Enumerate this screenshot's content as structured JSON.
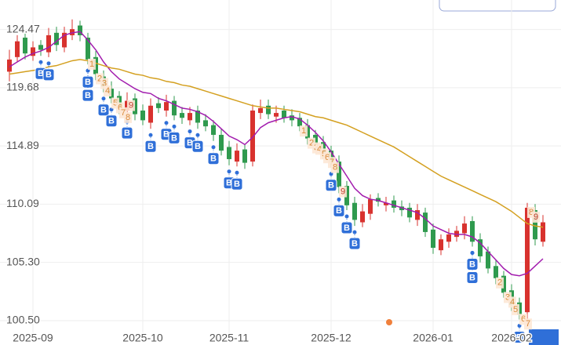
{
  "chart_data": {
    "type": "candlestick",
    "categories": [
      null,
      null,
      null,
      "2025-09",
      null,
      null,
      null,
      null,
      null,
      null,
      null,
      null,
      null,
      null,
      null,
      null,
      null,
      "2025-10",
      null,
      null,
      null,
      null,
      null,
      null,
      null,
      null,
      null,
      null,
      "2025-11",
      null,
      null,
      null,
      null,
      null,
      null,
      null,
      null,
      null,
      null,
      null,
      null,
      "2025-12",
      null,
      null,
      null,
      null,
      null,
      null,
      null,
      null,
      null,
      null,
      null,
      null,
      "2026-01",
      null,
      null,
      null,
      null,
      null,
      null,
      null,
      null,
      null,
      "2026-02",
      null,
      null,
      null,
      null
    ],
    "open": [
      121.0,
      122.2,
      123.8,
      122.3,
      123.2,
      122.6,
      124.2,
      123.0,
      124.0,
      124.8,
      123.8,
      122.2,
      120.6,
      119.6,
      119.0,
      117.8,
      118.8,
      117.8,
      116.8,
      118.4,
      117.8,
      118.6,
      117.6,
      117.0,
      117.8,
      117.0,
      116.6,
      115.8,
      114.8,
      113.6,
      114.6,
      113.6,
      117.6,
      118.2,
      117.3,
      117.8,
      117.4,
      117.2,
      116.6,
      115.8,
      115.2,
      114.5,
      113.6,
      111.6,
      110.2,
      108.6,
      109.3,
      110.6,
      110.0,
      110.4,
      109.9,
      109.8,
      108.8,
      109.4,
      108.0,
      106.3,
      107.0,
      107.4,
      107.7,
      108.7,
      107.2,
      106.2,
      105.0,
      104.2,
      103.0,
      102.0,
      101.2,
      109.6,
      107.0
    ],
    "high": [
      122.8,
      124.0,
      124.4,
      123.5,
      123.6,
      124.6,
      124.7,
      124.7,
      125.3,
      125.2,
      124.2,
      122.7,
      121.1,
      120.2,
      119.4,
      119.3,
      119.2,
      118.3,
      118.8,
      118.9,
      119.1,
      119.0,
      118.1,
      118.1,
      118.2,
      117.5,
      117.0,
      116.3,
      115.3,
      115.1,
      115.0,
      118.3,
      118.7,
      118.7,
      118.2,
      118.2,
      117.9,
      117.6,
      117.1,
      116.2,
      115.7,
      114.9,
      114.1,
      112.0,
      110.7,
      110.1,
      110.9,
      111.0,
      110.7,
      110.8,
      110.4,
      110.2,
      110.1,
      109.8,
      108.5,
      107.6,
      108.1,
      108.3,
      109.1,
      109.1,
      107.7,
      106.6,
      105.5,
      104.6,
      103.5,
      102.4,
      110.2,
      110.1,
      109.2
    ],
    "low": [
      120.2,
      121.8,
      122.0,
      121.9,
      122.3,
      122.2,
      122.7,
      122.6,
      123.6,
      123.5,
      121.6,
      120.3,
      119.3,
      118.4,
      117.5,
      117.4,
      117.0,
      116.6,
      116.3,
      117.6,
      117.3,
      117.0,
      116.7,
      116.6,
      116.3,
      116.1,
      115.3,
      114.1,
      113.3,
      113.2,
      113.0,
      113.2,
      117.1,
      117.1,
      116.8,
      116.8,
      116.5,
      116.1,
      115.0,
      114.6,
      113.8,
      113.1,
      111.0,
      109.6,
      108.3,
      108.2,
      108.8,
      109.9,
      109.5,
      109.4,
      109.1,
      108.6,
      108.3,
      107.4,
      106.0,
      105.9,
      106.5,
      107.0,
      107.2,
      106.6,
      105.3,
      104.4,
      103.5,
      102.4,
      101.3,
      100.6,
      100.0,
      106.7,
      106.6
    ],
    "close": [
      122.0,
      123.5,
      122.5,
      123.0,
      122.8,
      124.0,
      123.2,
      124.2,
      124.5,
      124.0,
      122.0,
      120.8,
      119.8,
      118.8,
      118.0,
      118.6,
      117.5,
      117.0,
      118.2,
      118.0,
      118.5,
      117.4,
      117.2,
      117.6,
      116.8,
      116.5,
      115.8,
      114.5,
      113.8,
      114.5,
      113.5,
      117.8,
      118.0,
      117.5,
      117.6,
      117.2,
      117.0,
      116.5,
      115.5,
      115.0,
      114.3,
      113.5,
      111.5,
      110.0,
      108.8,
      109.5,
      110.5,
      110.3,
      110.2,
      109.8,
      109.6,
      109.0,
      109.6,
      107.8,
      106.5,
      107.2,
      107.6,
      107.9,
      108.5,
      107.0,
      105.8,
      104.8,
      104.0,
      102.8,
      101.8,
      101.0,
      109.8,
      107.2,
      108.6
    ],
    "up_color": "#d8322e",
    "down_color": "#2f9a4e",
    "ma_lines": [
      {
        "color": "#a21cae",
        "values": [
          121.4,
          121.8,
          122.2,
          122.5,
          122.7,
          123.0,
          123.5,
          124.0,
          124.2,
          124.3,
          123.6,
          122.8,
          121.8,
          121.0,
          120.4,
          120.0,
          119.6,
          119.3,
          119.2,
          118.8,
          118.6,
          118.3,
          118.0,
          117.9,
          117.7,
          117.4,
          116.9,
          116.3,
          115.7,
          115.4,
          115.0,
          115.6,
          116.4,
          116.8,
          117.0,
          117.2,
          117.3,
          117.1,
          116.6,
          116.0,
          115.3,
          114.4,
          113.4,
          112.4,
          111.4,
          110.8,
          110.5,
          110.4,
          110.2,
          110.0,
          109.8,
          109.6,
          109.4,
          108.9,
          108.3,
          108.0,
          107.7,
          107.6,
          107.6,
          107.4,
          106.9,
          106.2,
          105.5,
          104.8,
          104.3,
          104.2,
          104.4,
          105.0,
          105.6
        ]
      },
      {
        "color": "#d4a020",
        "values": [
          120.8,
          120.9,
          121.0,
          121.1,
          121.2,
          121.4,
          121.5,
          121.7,
          121.9,
          122.0,
          121.9,
          121.7,
          121.5,
          121.3,
          121.2,
          121.0,
          120.8,
          120.7,
          120.5,
          120.4,
          120.2,
          120.1,
          119.9,
          119.8,
          119.6,
          119.4,
          119.2,
          119.0,
          118.8,
          118.6,
          118.4,
          118.2,
          118.1,
          118.0,
          118.0,
          117.9,
          117.8,
          117.7,
          117.5,
          117.3,
          117.2,
          117.0,
          116.8,
          116.6,
          116.3,
          116.0,
          115.7,
          115.4,
          115.1,
          114.8,
          114.4,
          114.0,
          113.6,
          113.2,
          112.8,
          112.4,
          112.1,
          111.8,
          111.5,
          111.2,
          110.9,
          110.6,
          110.3,
          109.9,
          109.5,
          109.0,
          108.5,
          108.3,
          108.2
        ]
      }
    ],
    "signals": [
      {
        "index": 4,
        "label": "B"
      },
      {
        "index": 5,
        "label": "B"
      },
      {
        "index": 10,
        "label": "B"
      },
      {
        "index": 10,
        "label": "B"
      },
      {
        "index": 12,
        "label": "B"
      },
      {
        "index": 13,
        "label": "B"
      },
      {
        "index": 15,
        "label": "B"
      },
      {
        "index": 18,
        "label": "B"
      },
      {
        "index": 20,
        "label": "B"
      },
      {
        "index": 21,
        "label": "B"
      },
      {
        "index": 23,
        "label": "B"
      },
      {
        "index": 24,
        "label": "B"
      },
      {
        "index": 26,
        "label": "B"
      },
      {
        "index": 28,
        "label": "B"
      },
      {
        "index": 29,
        "label": "B"
      },
      {
        "index": 41,
        "label": "B"
      },
      {
        "index": 42,
        "label": "B"
      },
      {
        "index": 43,
        "label": "B"
      },
      {
        "index": 44,
        "label": "B"
      },
      {
        "index": 59,
        "label": "B"
      },
      {
        "index": 59,
        "label": "B"
      },
      {
        "index": 65,
        "label": "B"
      }
    ],
    "counts": [
      {
        "index": 10,
        "label": "1"
      },
      {
        "index": 11,
        "label": "2"
      },
      {
        "index": 11,
        "label": "3"
      },
      {
        "index": 12,
        "label": "4"
      },
      {
        "index": 13,
        "label": "5"
      },
      {
        "index": 13,
        "label": "6"
      },
      {
        "index": 14,
        "label": "7"
      },
      {
        "index": 14,
        "label": "8"
      },
      {
        "index": 15,
        "label": "9"
      },
      {
        "index": 37,
        "label": "1"
      },
      {
        "index": 38,
        "label": "2"
      },
      {
        "index": 38,
        "label": "3"
      },
      {
        "index": 39,
        "label": "4"
      },
      {
        "index": 39,
        "label": "5"
      },
      {
        "index": 40,
        "label": "6"
      },
      {
        "index": 40,
        "label": "7"
      },
      {
        "index": 41,
        "label": "8"
      },
      {
        "index": 42,
        "label": "9"
      },
      {
        "index": 62,
        "label": "2"
      },
      {
        "index": 63,
        "label": "3"
      },
      {
        "index": 63,
        "label": "4"
      },
      {
        "index": 64,
        "label": "5"
      },
      {
        "index": 65,
        "label": "6"
      },
      {
        "index": 65,
        "label": "7"
      },
      {
        "index": 66,
        "label": "8"
      },
      {
        "index": 66,
        "label": "9"
      }
    ],
    "ylim": [
      98.5,
      126.9
    ],
    "yticks": [
      124.47,
      119.68,
      114.89,
      110.09,
      105.3,
      100.5
    ],
    "ytick_labels": [
      "124.47",
      "119.68",
      "114.89",
      "110.09",
      "105.30",
      "100.50"
    ],
    "grid": true
  }
}
